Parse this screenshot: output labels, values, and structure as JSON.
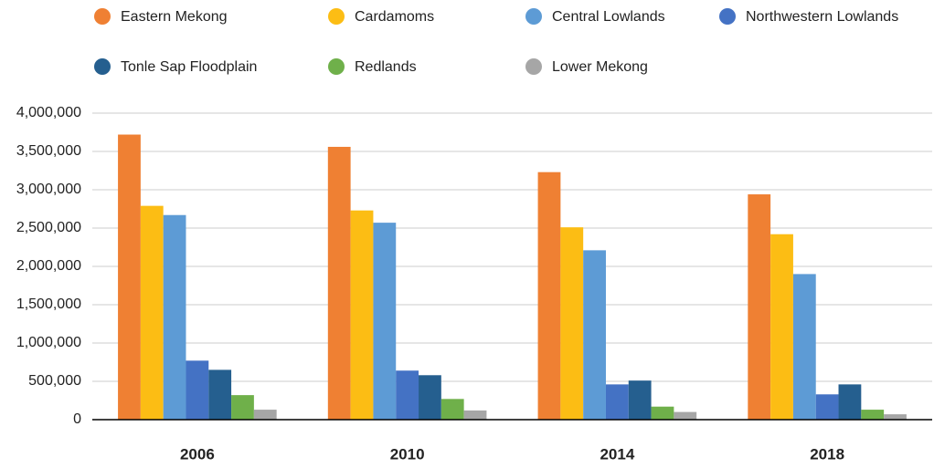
{
  "chart_data": {
    "type": "bar",
    "categories": [
      "2006",
      "2010",
      "2014",
      "2018"
    ],
    "series": [
      {
        "name": "Eastern Mekong",
        "color": "#ef8033",
        "values": [
          3720000,
          3560000,
          3230000,
          2940000
        ]
      },
      {
        "name": "Cardamoms",
        "color": "#fcbd14",
        "values": [
          2790000,
          2730000,
          2510000,
          2420000
        ]
      },
      {
        "name": "Central Lowlands",
        "color": "#5d9bd5",
        "values": [
          2670000,
          2570000,
          2210000,
          1900000
        ]
      },
      {
        "name": "Northwestern Lowlands",
        "color": "#4472c4",
        "values": [
          770000,
          640000,
          460000,
          330000
        ]
      },
      {
        "name": "Tonle Sap Floodplain",
        "color": "#255f8f",
        "values": [
          650000,
          580000,
          510000,
          460000
        ]
      },
      {
        "name": "Redlands",
        "color": "#6fb04a",
        "values": [
          320000,
          270000,
          170000,
          130000
        ]
      },
      {
        "name": "Lower Mekong",
        "color": "#a6a6a6",
        "values": [
          130000,
          120000,
          100000,
          70000
        ]
      }
    ],
    "ylim": [
      0,
      4000000
    ],
    "yticks": [
      0,
      {
        "value": 500000,
        "label": "500,000"
      },
      {
        "value": 1000000,
        "label": "1,000,000"
      },
      {
        "value": 1500000,
        "label": "1,500,000"
      },
      {
        "value": 2000000,
        "label": "2,000,000"
      },
      {
        "value": 2500000,
        "label": "2,500,000"
      },
      {
        "value": 3000000,
        "label": "3,000,000"
      },
      {
        "value": 3500000,
        "label": "3,500,000"
      },
      {
        "value": 4000000,
        "label": "4,000,000"
      }
    ],
    "grid": true,
    "legend": "top"
  }
}
